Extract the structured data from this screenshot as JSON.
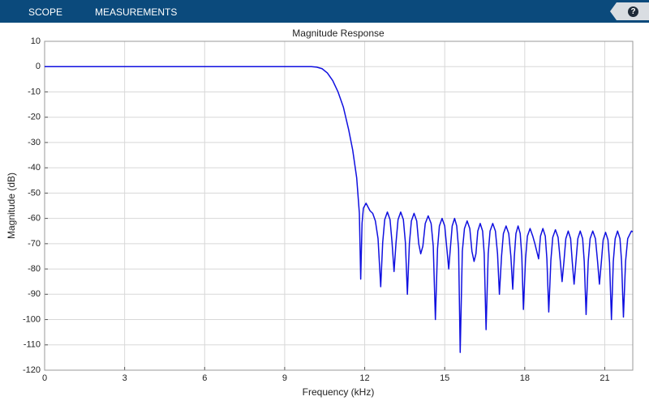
{
  "toolbar": {
    "tabs": [
      "SCOPE",
      "MEASUREMENTS"
    ],
    "help": "?"
  },
  "chart_data": {
    "type": "line",
    "title": "Magnitude Response",
    "xlabel": "Frequency (kHz)",
    "ylabel": "Magnitude (dB)",
    "xlim": [
      0,
      22.05
    ],
    "ylim": [
      -120,
      10
    ],
    "xticks": [
      0,
      3,
      6,
      9,
      12,
      15,
      18,
      21
    ],
    "yticks": [
      10,
      0,
      -10,
      -20,
      -30,
      -40,
      -50,
      -60,
      -70,
      -80,
      -90,
      -100,
      -110,
      -120
    ],
    "grid": true,
    "x": [
      0,
      2,
      4,
      6,
      8,
      9,
      10,
      10.2,
      10.4,
      10.6,
      10.8,
      11.0,
      11.2,
      11.4,
      11.55,
      11.7,
      11.8,
      11.85,
      11.9,
      11.95,
      12.05,
      12.2,
      12.3,
      12.4,
      12.5,
      12.6,
      12.675,
      12.75,
      12.85,
      12.95,
      13.025,
      13.1,
      13.175,
      13.25,
      13.35,
      13.45,
      13.525,
      13.6,
      13.675,
      13.75,
      13.85,
      13.95,
      14.025,
      14.1,
      14.18,
      14.27,
      14.38,
      14.49,
      14.57,
      14.65,
      14.73,
      14.8,
      14.9,
      15.0,
      15.08,
      15.15,
      15.21,
      15.28,
      15.37,
      15.45,
      15.52,
      15.58,
      15.66,
      15.74,
      15.84,
      15.94,
      16.02,
      16.1,
      16.17,
      16.24,
      16.33,
      16.42,
      16.48,
      16.55,
      16.63,
      16.7,
      16.8,
      16.9,
      16.98,
      17.05,
      17.13,
      17.2,
      17.3,
      17.4,
      17.48,
      17.55,
      17.61,
      17.67,
      17.75,
      17.83,
      17.89,
      17.95,
      18.03,
      18.1,
      18.2,
      18.3,
      18.38,
      18.45,
      18.52,
      18.59,
      18.68,
      18.77,
      18.83,
      18.9,
      18.98,
      19.05,
      19.15,
      19.25,
      19.33,
      19.4,
      19.47,
      19.54,
      19.63,
      19.72,
      19.78,
      19.85,
      19.92,
      19.99,
      20.08,
      20.17,
      20.23,
      20.3,
      20.38,
      20.45,
      20.55,
      20.65,
      20.73,
      20.8,
      20.87,
      20.94,
      21.03,
      21.12,
      21.18,
      21.25,
      21.32,
      21.39,
      21.48,
      21.57,
      21.63,
      21.7,
      21.78,
      21.86,
      22.0,
      22.05
    ],
    "series": [
      {
        "name": "Magnitude",
        "color": "#1010e0",
        "values": [
          0,
          0,
          0,
          0,
          0,
          0,
          0,
          -0.2,
          -0.8,
          -2.5,
          -5.5,
          -10,
          -16,
          -25,
          -33,
          -44,
          -58,
          -84,
          -62,
          -56,
          -54,
          -57,
          -58,
          -61,
          -68,
          -87,
          -69.5,
          -60.5,
          -57.5,
          -60.5,
          -69.5,
          -81,
          -69.5,
          -60.5,
          -57.5,
          -60.5,
          -69.5,
          -90,
          -70,
          -61,
          -58,
          -61,
          -70,
          -74,
          -71,
          -62,
          -59,
          -62,
          -71,
          -100,
          -72,
          -63,
          -60,
          -63,
          -72,
          -80,
          -72,
          -63,
          -60,
          -63,
          -72,
          -113,
          -73,
          -64,
          -61,
          -64,
          -73,
          -77,
          -74,
          -65,
          -62,
          -65,
          -74,
          -104,
          -74,
          -65,
          -62,
          -65,
          -74,
          -90,
          -75,
          -66,
          -63,
          -66,
          -75,
          -88,
          -75,
          -66,
          -63,
          -66,
          -75,
          -96,
          -76,
          -67,
          -64,
          -67,
          -70,
          -73,
          -76,
          -67,
          -64,
          -67,
          -76,
          -97,
          -76.5,
          -67.5,
          -64.5,
          -67.5,
          -76.5,
          -85,
          -77,
          -68,
          -65,
          -68,
          -77,
          -86,
          -77,
          -68,
          -65,
          -68,
          -77,
          -98,
          -77,
          -68,
          -65,
          -68,
          -77,
          -86,
          -77.5,
          -68.5,
          -65.5,
          -68.5,
          -77.5,
          -100,
          -77,
          -68,
          -65,
          -68,
          -77,
          -99,
          -77,
          -68,
          -65,
          -65.3
        ]
      }
    ]
  }
}
